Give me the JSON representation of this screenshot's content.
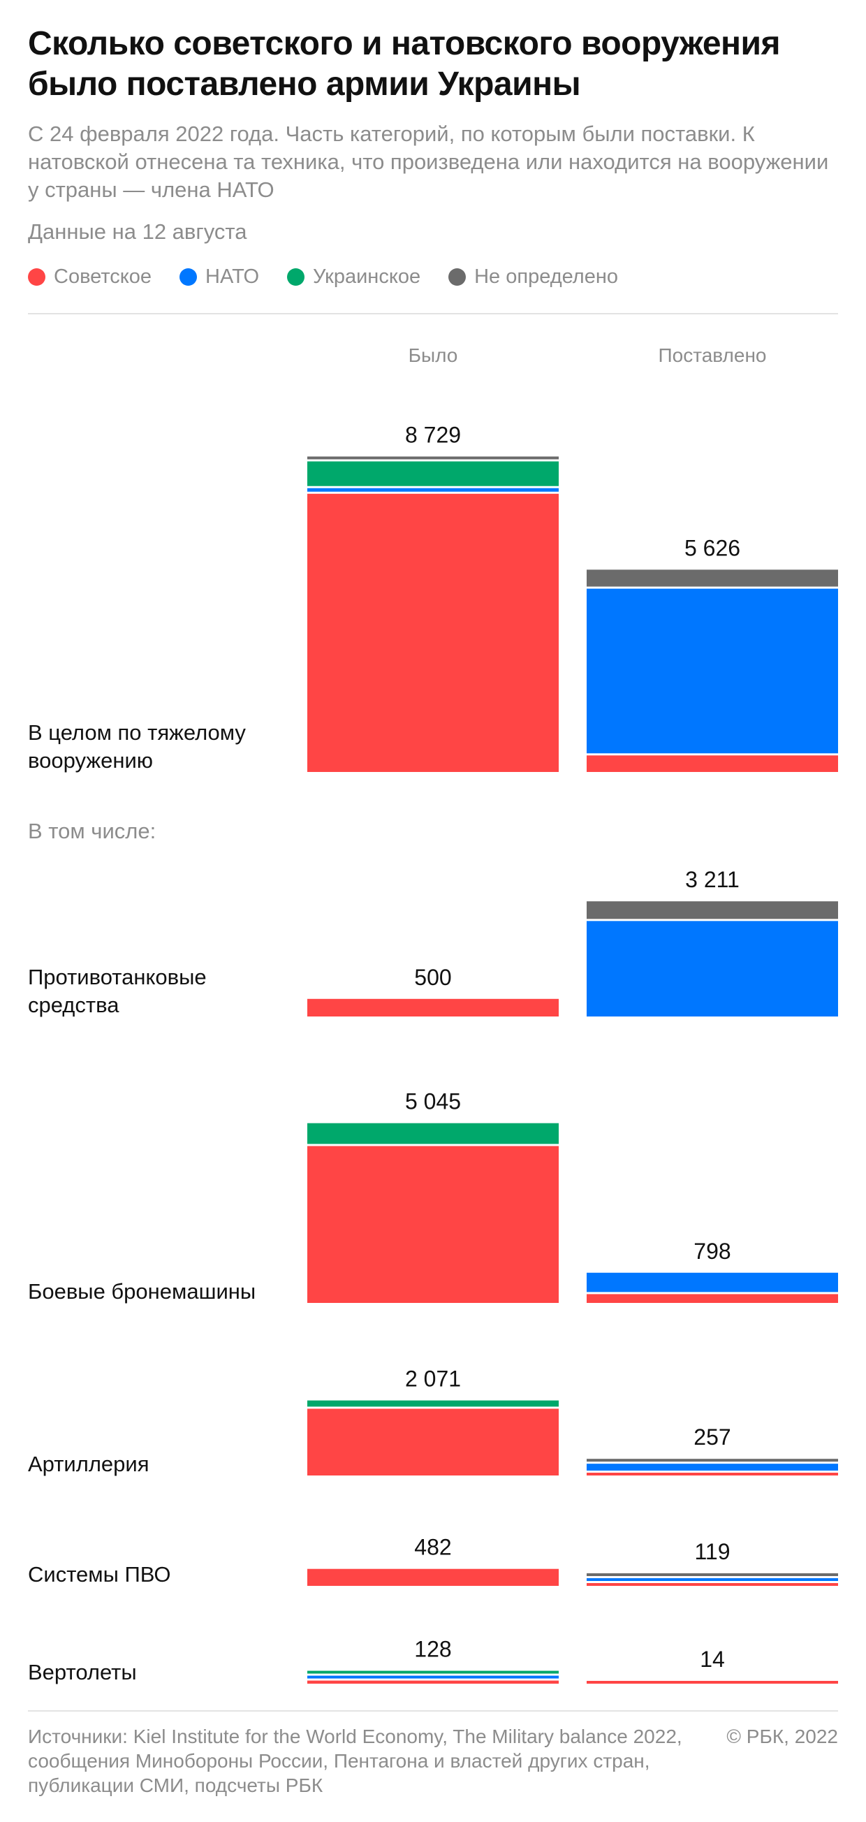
{
  "header": {
    "title": "Сколько советского и натовского вооружения было поставлено армии Украины",
    "subtitle": "С 24 февраля 2022 года. Часть категорий, по которым были поставки. К натовской отнесена та техника, что произведена или находится на вооружении у страны — члена НАТО",
    "as_of": "Данные на 12 августа"
  },
  "legend": [
    {
      "label": "Советское",
      "color": "#ff4545"
    },
    {
      "label": "НАТО",
      "color": "#0077ff"
    },
    {
      "label": "Украинское",
      "color": "#00a86b"
    },
    {
      "label": "Не определено",
      "color": "#6b6b6b"
    }
  ],
  "chart_data": {
    "type": "bar",
    "stacked": true,
    "columns": [
      "Было",
      "Поставлено"
    ],
    "note": "В том числе:",
    "series_order": [
      "Советское",
      "НАТО",
      "Украинское",
      "Не определено"
    ],
    "colors": {
      "Советское": "#ff4545",
      "НАТО": "#0077ff",
      "Украинское": "#00a86b",
      "Не определено": "#6b6b6b"
    },
    "groups": [
      {
        "label": "В целом по тяжелому вооружению",
        "bylo": {
          "total": "8 729",
          "segments": {
            "Советское": 7900,
            "НАТО": 100,
            "Украинское": 700,
            "Не определено": 29
          }
        },
        "postavleno": {
          "total": "5 626",
          "segments": {
            "Советское": 470,
            "НАТО": 4676,
            "Украинское": 0,
            "Не определено": 480
          }
        }
      },
      {
        "label": "Противотанковые средства",
        "bylo": {
          "total": "500",
          "segments": {
            "Советское": 500,
            "НАТО": 0,
            "Украинское": 0,
            "Не определено": 0
          }
        },
        "postavleno": {
          "total": "3 211",
          "segments": {
            "Советское": 0,
            "НАТО": 2711,
            "Украинское": 0,
            "Не определено": 500
          }
        }
      },
      {
        "label": "Боевые бронемашины",
        "bylo": {
          "total": "5 045",
          "segments": {
            "Советское": 4455,
            "НАТО": 0,
            "Украинское": 590,
            "Не определено": 0
          }
        },
        "postavleno": {
          "total": "798",
          "segments": {
            "Советское": 250,
            "НАТО": 548,
            "Украинское": 0,
            "Не определено": 0
          }
        }
      },
      {
        "label": "Артиллерия",
        "bylo": {
          "total": "2 071",
          "segments": {
            "Советское": 1896,
            "НАТО": 0,
            "Украинское": 175,
            "Не определено": 0
          }
        },
        "postavleno": {
          "total": "257",
          "segments": {
            "Советское": 40,
            "НАТО": 195,
            "Украинское": 0,
            "Не определено": 22
          }
        }
      },
      {
        "label": "Системы ПВО",
        "bylo": {
          "total": "482",
          "segments": {
            "Советское": 482,
            "НАТО": 0,
            "Украинское": 0,
            "Не определено": 0
          }
        },
        "postavleno": {
          "total": "119",
          "segments": {
            "Советское": 70,
            "НАТО": 39,
            "Украинское": 0,
            "Не определено": 10
          }
        }
      },
      {
        "label": "Вертолеты",
        "bylo": {
          "total": "128",
          "segments": {
            "Советское": 88,
            "НАТО": 20,
            "Украинское": 20,
            "Не определено": 0
          }
        },
        "postavleno": {
          "total": "14",
          "segments": {
            "Советское": 14,
            "НАТО": 0,
            "Украинское": 0,
            "Не определено": 0
          }
        }
      }
    ]
  },
  "footer": {
    "sources": "Источники: Kiel Institute for the World Economy, The Military balance 2022, сообщения Минобороны России, Пентагона и властей других стран, публикации СМИ, подсчеты РБК",
    "copyright": "© РБК, 2022"
  }
}
